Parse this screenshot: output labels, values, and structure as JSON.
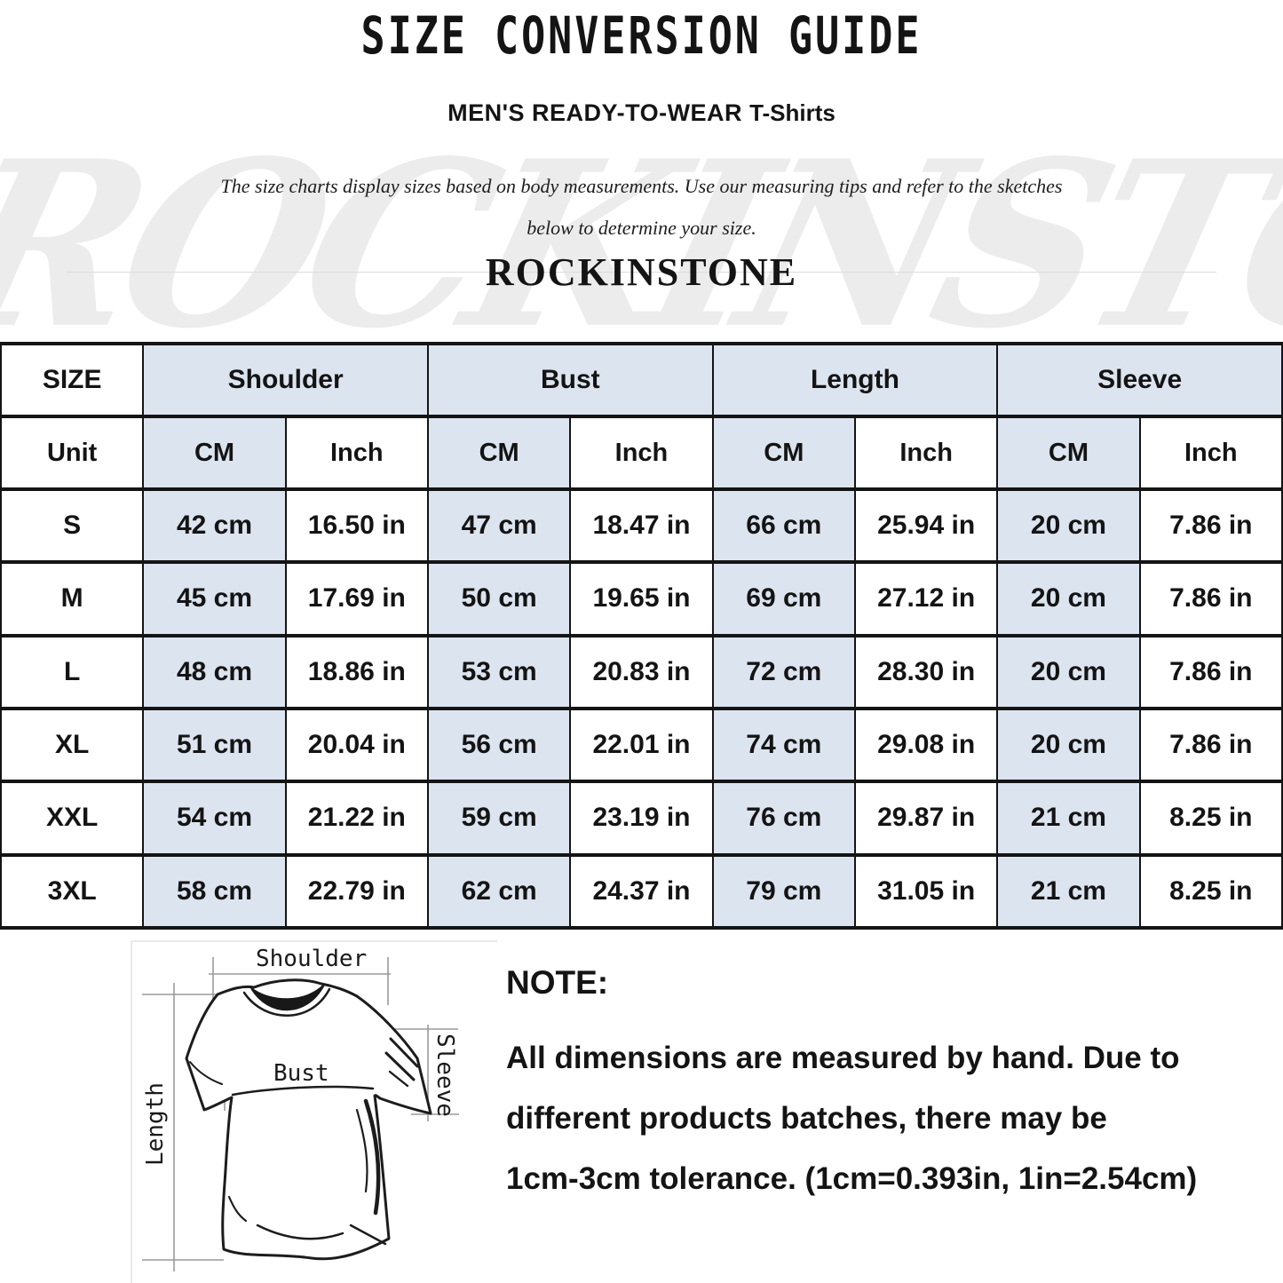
{
  "header": {
    "title": "SIZE CONVERSION GUIDE",
    "subtitle": "MEN'S READY-TO-WEAR",
    "subtitle_em": "T-Shirts",
    "description_lines": [
      "The size charts display sizes based on body measurements. Use our measuring tips and refer to the sketches",
      "below to determine your size."
    ],
    "brand": "ROCKINSTONE",
    "watermark": "ROCKINSTONE"
  },
  "size_table": {
    "corner_label": "SIZE",
    "unit_label": "Unit",
    "groups": [
      "Shoulder",
      "Bust",
      "Length",
      "Sleeve"
    ],
    "unit_columns": [
      "CM",
      "Inch",
      "CM",
      "Inch",
      "CM",
      "Inch",
      "CM",
      "Inch"
    ],
    "rows": [
      {
        "size": "S",
        "values": [
          "42 cm",
          "16.50 in",
          "47 cm",
          "18.47 in",
          "66 cm",
          "25.94 in",
          "20 cm",
          "7.86 in"
        ]
      },
      {
        "size": "M",
        "values": [
          "45 cm",
          "17.69 in",
          "50 cm",
          "19.65 in",
          "69 cm",
          "27.12 in",
          "20 cm",
          "7.86 in"
        ]
      },
      {
        "size": "L",
        "values": [
          "48 cm",
          "18.86 in",
          "53 cm",
          "20.83 in",
          "72 cm",
          "28.30 in",
          "20 cm",
          "7.86 in"
        ]
      },
      {
        "size": "XL",
        "values": [
          "51 cm",
          "20.04 in",
          "56 cm",
          "22.01 in",
          "74 cm",
          "29.08 in",
          "20 cm",
          "7.86 in"
        ]
      },
      {
        "size": "XXL",
        "values": [
          "54 cm",
          "21.22 in",
          "59 cm",
          "23.19 in",
          "76 cm",
          "29.87 in",
          "21 cm",
          "8.25 in"
        ]
      },
      {
        "size": "3XL",
        "values": [
          "58 cm",
          "22.79 in",
          "62 cm",
          "24.37 in",
          "79 cm",
          "31.05 in",
          "21 cm",
          "8.25 in"
        ]
      }
    ]
  },
  "diagram": {
    "labels": {
      "shoulder": "Shoulder",
      "bust": "Bust",
      "sleeve": "Sleeve",
      "length": "Length"
    }
  },
  "note": {
    "heading": "NOTE:",
    "lines": [
      "All dimensions are measured by hand. Due to",
      "different products batches, there may be",
      "1cm-3cm tolerance. (1cm=0.393in, 1in=2.54cm)"
    ]
  },
  "colors": {
    "header_blue": "#dce4f0",
    "border_dark": "#141414",
    "watermark_gray": "#ececec"
  }
}
